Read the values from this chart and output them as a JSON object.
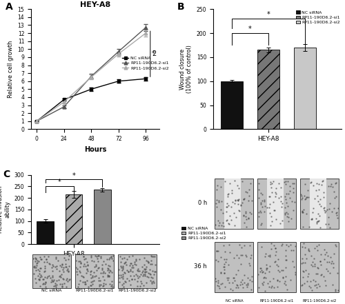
{
  "panel_A": {
    "title": "HEY-A8",
    "xlabel": "Hours",
    "ylabel": "Relative cell growth",
    "hours": [
      0,
      24,
      48,
      72,
      96
    ],
    "NC_siRNA": [
      1.0,
      3.7,
      5.0,
      6.0,
      6.3
    ],
    "NC_err": [
      0.05,
      0.15,
      0.2,
      0.2,
      0.2
    ],
    "si1": [
      1.0,
      2.8,
      6.6,
      9.7,
      12.7
    ],
    "si1_err": [
      0.05,
      0.2,
      0.3,
      0.35,
      0.4
    ],
    "si2": [
      1.0,
      3.4,
      6.5,
      9.4,
      12.0
    ],
    "si2_err": [
      0.05,
      0.2,
      0.3,
      0.3,
      0.4
    ],
    "ylim": [
      0,
      15
    ],
    "yticks": [
      0,
      1,
      2,
      3,
      4,
      5,
      6,
      7,
      8,
      9,
      10,
      11,
      12,
      13,
      14,
      15
    ]
  },
  "panel_B": {
    "ylabel": "Wound closure\n(100% of control)",
    "xlabel": "HEY-A8",
    "values": [
      100,
      165,
      170
    ],
    "errors": [
      2,
      5,
      7
    ],
    "bar_colors": [
      "#111111",
      "#777777",
      "#c8c8c8"
    ],
    "ylim": [
      0,
      250
    ],
    "yticks": [
      0,
      50,
      100,
      150,
      200,
      250
    ]
  },
  "panel_C": {
    "ylabel": "Relative invasion\nability",
    "xlabel": "HEY-A8",
    "values": [
      100,
      215,
      235
    ],
    "errors": [
      8,
      15,
      8
    ],
    "bar_colors": [
      "#111111",
      "#aaaaaa",
      "#888888"
    ],
    "ylim": [
      0,
      300
    ],
    "yticks": [
      0,
      50,
      100,
      150,
      200,
      250,
      300
    ]
  },
  "legend_labels": [
    "NC siRNA",
    "RP11-190D6.2-si1",
    "RP11-190D6.2-si2"
  ],
  "background": "#ffffff"
}
